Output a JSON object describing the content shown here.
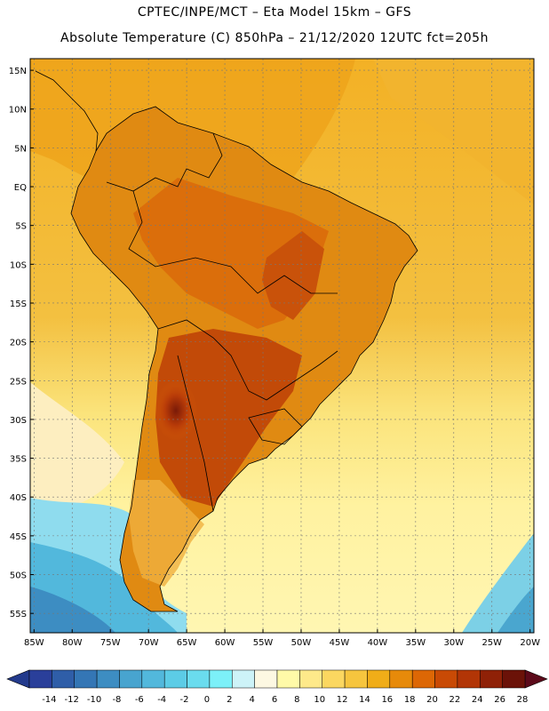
{
  "header": {
    "line1": "CPTEC/INPE/MCT –   Eta Model 15km – GFS",
    "line2": "Absolute Temperature (C) 850hPa – 21/12/2020 12UTC fct=205h"
  },
  "map": {
    "lat_labels": [
      "15N",
      "10N",
      "5N",
      "EQ",
      "5S",
      "10S",
      "15S",
      "20S",
      "25S",
      "30S",
      "35S",
      "40S",
      "45S",
      "50S",
      "55S"
    ],
    "lat_values": [
      15,
      10,
      5,
      0,
      -5,
      -10,
      -15,
      -20,
      -25,
      -30,
      -35,
      -40,
      -45,
      -50,
      -55
    ],
    "lon_labels": [
      "85W",
      "80W",
      "75W",
      "70W",
      "65W",
      "60W",
      "55W",
      "50W",
      "45W",
      "40W",
      "35W",
      "30W",
      "25W",
      "20W"
    ],
    "lon_values": [
      -85,
      -80,
      -75,
      -70,
      -65,
      -60,
      -55,
      -50,
      -45,
      -40,
      -35,
      -30,
      -25,
      -20
    ],
    "lon_range": [
      -85.5,
      -19.5
    ],
    "lat_range": [
      -57.5,
      16.5
    ]
  },
  "colorbar": {
    "labels": [
      "-14",
      "-12",
      "-10",
      "-8",
      "-6",
      "-4",
      "-2",
      "0",
      "2",
      "4",
      "6",
      "8",
      "10",
      "12",
      "14",
      "16",
      "18",
      "20",
      "22",
      "24",
      "26",
      "28"
    ],
    "colors": [
      "#2a3f9a",
      "#2f5ea8",
      "#3476b5",
      "#3d8dc2",
      "#48a4cf",
      "#52b8dc",
      "#5ccce6",
      "#6adcee",
      "#7cf0f8",
      "#cdf3f8",
      "#fdf8e2",
      "#fffaa8",
      "#fee98a",
      "#fbd760",
      "#f6c53e",
      "#f0ad18",
      "#e78a0a",
      "#dd6705",
      "#c94a05",
      "#b23506",
      "#8f2107",
      "#6b1208"
    ],
    "low_arrow_color": "#233a8c",
    "high_arrow_color": "#5c0a1a"
  }
}
